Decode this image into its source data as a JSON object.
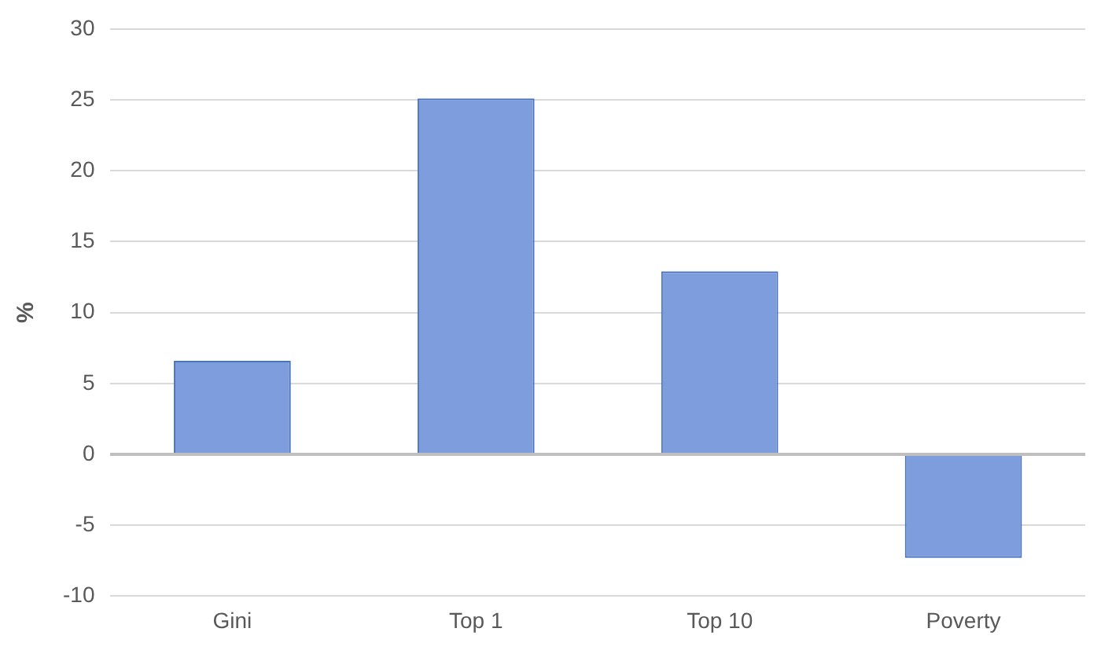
{
  "chart_data": {
    "type": "bar",
    "ylabel": "%",
    "categories": [
      "Gini",
      "Top 1",
      "Top 10",
      "Poverty"
    ],
    "values": [
      6.6,
      25.1,
      12.9,
      -7.3
    ],
    "color": "#7d9ddc",
    "ylim": [
      -10,
      30
    ],
    "yticks": [
      -10,
      -5,
      0,
      5,
      10,
      15,
      20,
      25,
      30
    ],
    "grid": "y"
  }
}
